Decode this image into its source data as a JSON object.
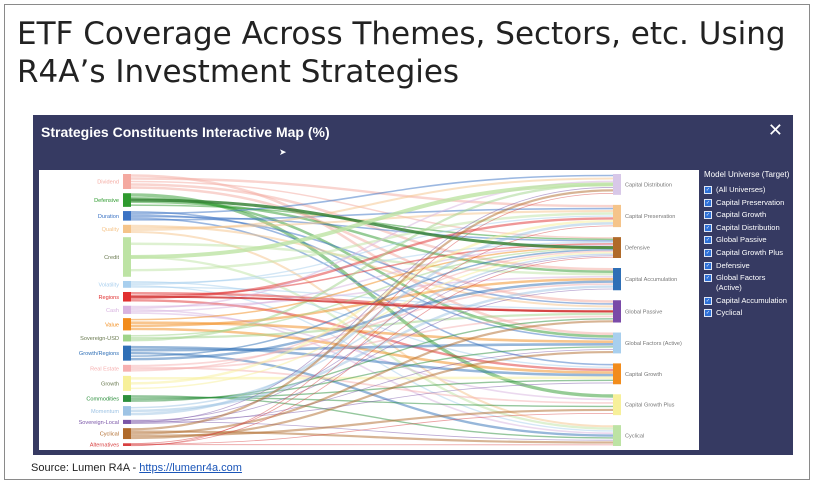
{
  "slide": {
    "title": "ETF Coverage Across Themes, Sectors, etc. Using R4A’s Investment Strategies",
    "source_prefix": "Source: Lumen R4A - ",
    "source_link": "https://lumenr4a.com"
  },
  "panel": {
    "title": "Strategies Constituents Interactive Map (%)",
    "close_icon": "close-icon"
  },
  "legend": {
    "title": "Model Universe (Target)",
    "items": [
      {
        "label": "(All Universes)",
        "checked": true
      },
      {
        "label": "Capital Preservation",
        "checked": true
      },
      {
        "label": "Capital Growth",
        "checked": true
      },
      {
        "label": "Capital Distribution",
        "checked": true
      },
      {
        "label": "Global Passive",
        "checked": true
      },
      {
        "label": "Capital Growth Plus",
        "checked": true
      },
      {
        "label": "Defensive",
        "checked": true
      },
      {
        "label": "Global Factors (Active)",
        "checked": true
      },
      {
        "label": "Capital Accumulation",
        "checked": true
      },
      {
        "label": "Cyclical",
        "checked": true
      }
    ]
  },
  "chart_data": {
    "type": "sankey",
    "sources": [
      {
        "name": "Dividend",
        "weight": 2.2,
        "color": "#f4a9a0"
      },
      {
        "name": "Defensive",
        "weight": 2.0,
        "color": "#2e9a2e"
      },
      {
        "name": "Duration",
        "weight": 1.4,
        "color": "#3a72c4"
      },
      {
        "name": "Quality",
        "weight": 1.2,
        "color": "#f5c48a"
      },
      {
        "name": "Credit",
        "weight": 5.8,
        "color": "#bde3a4"
      },
      {
        "name": "Volatility",
        "weight": 1.0,
        "color": "#a8cfee"
      },
      {
        "name": "Regions",
        "weight": 1.4,
        "color": "#e03030"
      },
      {
        "name": "Cash",
        "weight": 1.2,
        "color": "#d8b3e0"
      },
      {
        "name": "Value",
        "weight": 1.8,
        "color": "#f28c1c"
      },
      {
        "name": "Sovereign-USD",
        "weight": 1.0,
        "color": "#9fd48a"
      },
      {
        "name": "Growth/Regions",
        "weight": 2.2,
        "color": "#2f6fb6"
      },
      {
        "name": "Real Estate",
        "weight": 1.0,
        "color": "#f6b0b0"
      },
      {
        "name": "Growth",
        "weight": 2.2,
        "color": "#f7f09a"
      },
      {
        "name": "Commodities",
        "weight": 1.0,
        "color": "#2c8f3c"
      },
      {
        "name": "Momentum",
        "weight": 1.4,
        "color": "#9ec3e4"
      },
      {
        "name": "Sovereign-Local",
        "weight": 0.6,
        "color": "#7a56a8"
      },
      {
        "name": "Cyclical",
        "weight": 1.6,
        "color": "#b06a2a"
      },
      {
        "name": "Alternatives",
        "weight": 0.4,
        "color": "#d84040"
      }
    ],
    "targets": [
      {
        "name": "Capital Distribution",
        "weight": 3.0,
        "color": "#d8c8e8"
      },
      {
        "name": "Capital Preservation",
        "weight": 3.2,
        "color": "#f5c48a"
      },
      {
        "name": "Defensive",
        "weight": 3.0,
        "color": "#b06a2a"
      },
      {
        "name": "Capital Accumulation",
        "weight": 3.2,
        "color": "#2f6fb6"
      },
      {
        "name": "Global Passive",
        "weight": 3.2,
        "color": "#7a4aa8"
      },
      {
        "name": "Global Factors (Active)",
        "weight": 3.0,
        "color": "#a8cfee"
      },
      {
        "name": "Capital Growth",
        "weight": 3.0,
        "color": "#f28c1c"
      },
      {
        "name": "Capital Growth Plus",
        "weight": 3.0,
        "color": "#f7f09a"
      },
      {
        "name": "Cyclical",
        "weight": 3.0,
        "color": "#bde3a4"
      }
    ]
  }
}
